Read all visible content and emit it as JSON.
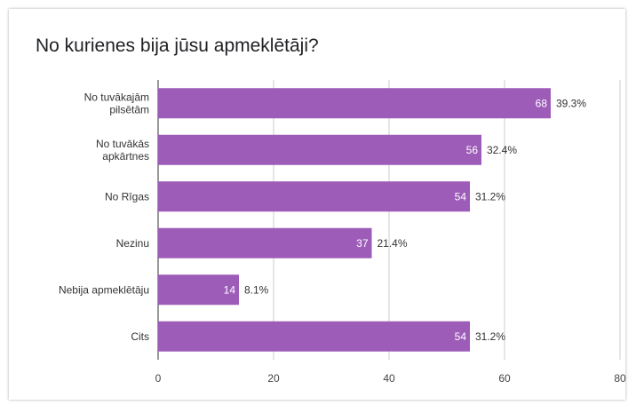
{
  "chart_data": {
    "type": "bar",
    "orientation": "horizontal",
    "title": "No kurienes bija jūsu apmeklētāji?",
    "categories": [
      "No tuvākajām pilsētām",
      "No tuvākās apkārtnes",
      "No Rīgas",
      "Nezinu",
      "Nebija apmeklētāju",
      "Cits"
    ],
    "category_lines": [
      [
        "No tuvākajām",
        "pilsētām"
      ],
      [
        "No tuvākās",
        "apkārtnes"
      ],
      [
        "No Rīgas"
      ],
      [
        "Nezinu"
      ],
      [
        "Nebija apmeklētāju"
      ],
      [
        "Cits"
      ]
    ],
    "values": [
      68,
      56,
      54,
      37,
      14,
      54
    ],
    "percent_labels": [
      "39.3%",
      "32.4%",
      "31.2%",
      "21.4%",
      "8.1%",
      "31.2%"
    ],
    "xlim": [
      0,
      80
    ],
    "x_ticks": [
      0,
      20,
      40,
      60,
      80
    ],
    "grid": true,
    "bar_color": "#9d5cb8",
    "value_label_color": "#ffffff"
  }
}
